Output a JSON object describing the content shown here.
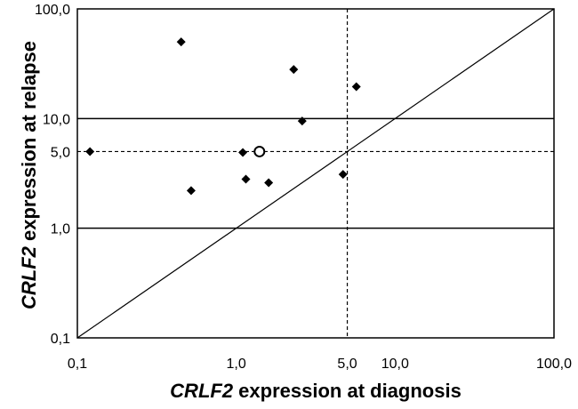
{
  "chart_data": {
    "type": "scatter",
    "scale": "log-log",
    "xlim": [
      0.1,
      100
    ],
    "ylim": [
      0.1,
      100
    ],
    "xlabel_gene": "CRLF2",
    "xlabel_rest": " expression at diagnosis",
    "ylabel_gene": "CRLF2",
    "ylabel_rest": " expression at relapse",
    "x_ticks": [
      {
        "value": 0.1,
        "label": "0,1"
      },
      {
        "value": 1,
        "label": "1,0"
      },
      {
        "value": 5,
        "label": "5,0"
      },
      {
        "value": 10,
        "label": "10,0"
      },
      {
        "value": 100,
        "label": "100,0"
      }
    ],
    "y_ticks": [
      {
        "value": 0.1,
        "label": "0,1"
      },
      {
        "value": 1,
        "label": "1,0"
      },
      {
        "value": 5,
        "label": "5,0"
      },
      {
        "value": 10,
        "label": "10,0"
      },
      {
        "value": 100,
        "label": "100,0"
      }
    ],
    "gridlines_y": [
      1,
      10
    ],
    "threshold_x": 5,
    "threshold_y": 5,
    "identity_line": true,
    "series": [
      {
        "name": "filled",
        "marker": "diamond",
        "points": [
          {
            "x": 0.12,
            "y": 5.0
          },
          {
            "x": 0.45,
            "y": 50.0
          },
          {
            "x": 0.52,
            "y": 2.2
          },
          {
            "x": 1.1,
            "y": 4.9
          },
          {
            "x": 1.15,
            "y": 2.8
          },
          {
            "x": 1.6,
            "y": 2.6
          },
          {
            "x": 2.3,
            "y": 28.0
          },
          {
            "x": 2.6,
            "y": 9.5
          },
          {
            "x": 4.7,
            "y": 3.1
          },
          {
            "x": 5.7,
            "y": 19.5
          }
        ]
      },
      {
        "name": "open",
        "marker": "circle",
        "points": [
          {
            "x": 1.4,
            "y": 5.0
          }
        ]
      }
    ]
  }
}
